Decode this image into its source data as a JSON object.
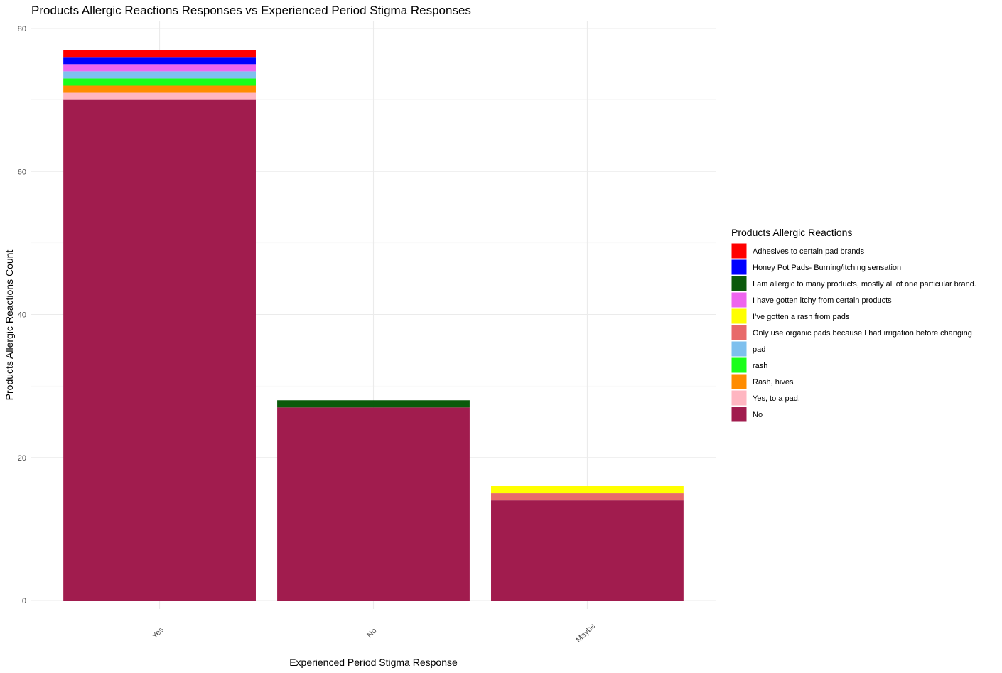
{
  "chart_data": {
    "type": "bar",
    "stacked": true,
    "title": "Products Allergic Reactions Responses vs Experienced Period Stigma Responses",
    "xlabel": "Experienced Period Stigma Response",
    "ylabel": "Products Allergic Reactions Count",
    "categories": [
      "Yes",
      "No",
      "Maybe"
    ],
    "ylim": [
      0,
      80
    ],
    "yticks": [
      0,
      20,
      40,
      60,
      80
    ],
    "grid": true,
    "legend": {
      "title": "Products Allergic Reactions",
      "position": "right"
    },
    "series": [
      {
        "name": "No",
        "color": "#A11C4E",
        "values": [
          70,
          27,
          14
        ]
      },
      {
        "name": "Yes, to a pad.",
        "color": "#FFB6C1",
        "values": [
          1,
          0,
          0
        ]
      },
      {
        "name": "Rash, hives",
        "color": "#FF8C00",
        "values": [
          1,
          0,
          0
        ]
      },
      {
        "name": "rash",
        "color": "#1AFF1A",
        "values": [
          1,
          0,
          0
        ]
      },
      {
        "name": "pad",
        "color": "#7EC0EE",
        "values": [
          1,
          0,
          0
        ]
      },
      {
        "name": "Only use organic pads because I had irrigation before changing",
        "color": "#E86A6A",
        "values": [
          0,
          0,
          1
        ]
      },
      {
        "name": "I’ve gotten a rash from pads",
        "color": "#FFFF00",
        "values": [
          0,
          0,
          1
        ]
      },
      {
        "name": "I have gotten itchy from certain products",
        "color": "#EE66EE",
        "values": [
          1,
          0,
          0
        ]
      },
      {
        "name": "I am allergic to many products, mostly all of one particular brand.",
        "color": "#0B5A0B",
        "values": [
          0,
          1,
          0
        ]
      },
      {
        "name": "Honey Pot Pads- Burning/itching sensation",
        "color": "#0000FF",
        "values": [
          1,
          0,
          0
        ]
      },
      {
        "name": "Adhesives to certain pad brands",
        "color": "#FF0000",
        "values": [
          1,
          0,
          0
        ]
      }
    ],
    "legend_order": [
      "Adhesives to certain pad brands",
      "Honey Pot Pads- Burning/itching sensation",
      "I am allergic to many products, mostly all of one particular brand.",
      "I have gotten itchy from certain products",
      "I’ve gotten a rash from pads",
      "Only use organic pads because I had irrigation before changing",
      "pad",
      "rash",
      "Rash, hives",
      "Yes, to a pad.",
      "No"
    ]
  }
}
